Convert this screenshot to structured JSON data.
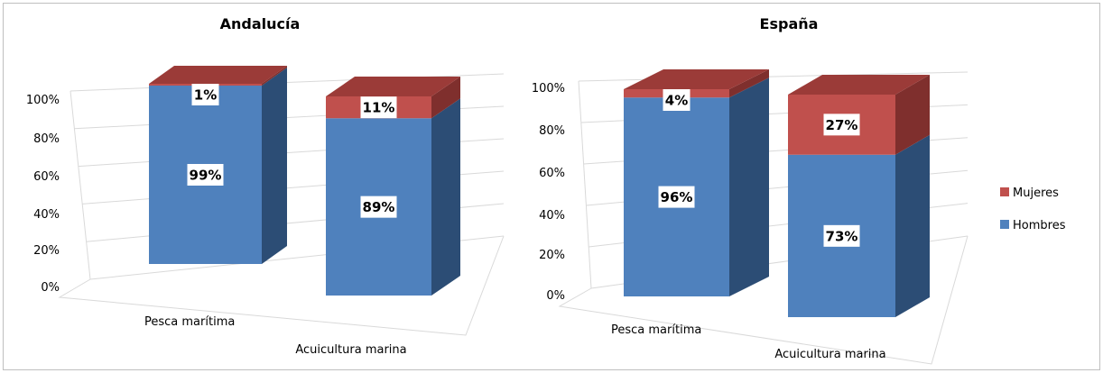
{
  "chart_data": [
    {
      "type": "bar",
      "stacked": true,
      "percent": true,
      "title": "Andalucía",
      "categories": [
        "Pesca marítima",
        "Acuicultura marina"
      ],
      "series": [
        {
          "name": "Hombres",
          "values": [
            99,
            89
          ],
          "labels": [
            "99%",
            "89%"
          ]
        },
        {
          "name": "Mujeres",
          "values": [
            1,
            11
          ],
          "labels": [
            "1%",
            "11%"
          ]
        }
      ],
      "yticks": [
        "0%",
        "20%",
        "40%",
        "60%",
        "80%",
        "100%"
      ],
      "ylim": [
        0,
        100
      ],
      "grid": true
    },
    {
      "type": "bar",
      "stacked": true,
      "percent": true,
      "title": "España",
      "categories": [
        "Pesca marítima",
        "Acuicultura marina"
      ],
      "series": [
        {
          "name": "Hombres",
          "values": [
            96,
            73
          ],
          "labels": [
            "96%",
            "73%"
          ]
        },
        {
          "name": "Mujeres",
          "values": [
            4,
            27
          ],
          "labels": [
            "4%",
            "27%"
          ]
        }
      ],
      "yticks": [
        "0%",
        "20%",
        "40%",
        "60%",
        "80%",
        "100%"
      ],
      "ylim": [
        0,
        100
      ],
      "grid": true
    }
  ],
  "legend": {
    "placement": "right",
    "items": [
      {
        "name": "Mujeres",
        "color": "#c0504d"
      },
      {
        "name": "Hombres",
        "color": "#4f81bd"
      }
    ]
  },
  "colors": {
    "hombres_front": "#4f81bd",
    "hombres_side": "#2c4d75",
    "hombres_top": "#7399c6",
    "mujeres_front": "#c0504d",
    "mujeres_side": "#7f2f2d",
    "mujeres_top": "#9b3b38"
  }
}
